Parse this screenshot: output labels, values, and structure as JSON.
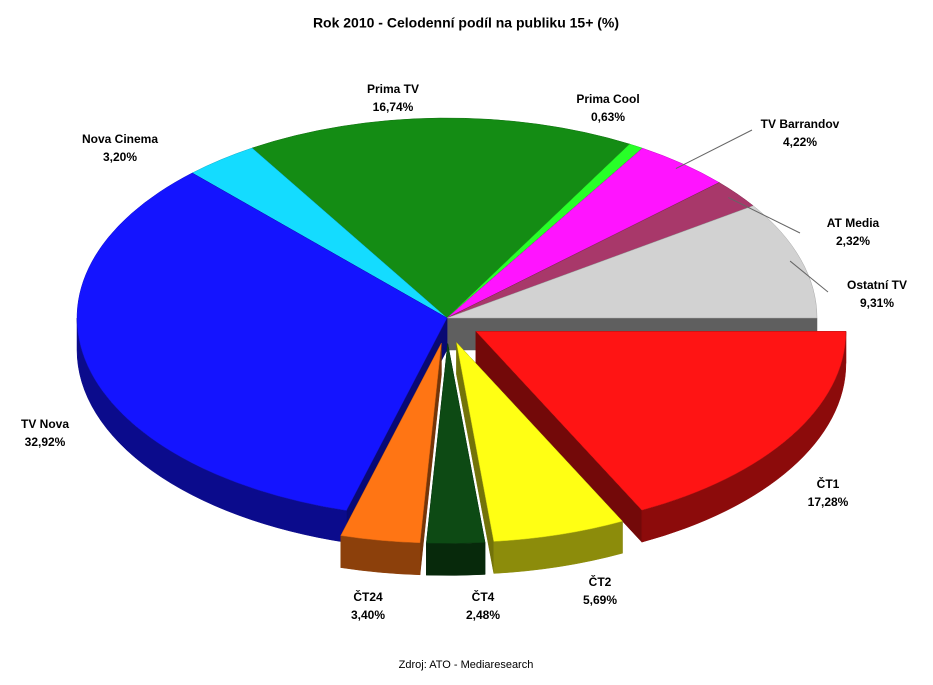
{
  "chart_data": {
    "type": "pie",
    "three_d": true,
    "title": "Rok 2010 - Celodenní podíl na publiku 15+ (%)",
    "source": "Zdroj: ATO - Mediaresearch",
    "categories": [
      "ČT1",
      "ČT2",
      "ČT4",
      "ČT24",
      "TV Nova",
      "Nova Cinema",
      "Prima TV",
      "Prima Cool",
      "TV Barrandov",
      "AT Media",
      "Ostatní TV"
    ],
    "values": [
      17.28,
      5.69,
      2.48,
      3.4,
      32.92,
      3.2,
      16.74,
      0.63,
      4.22,
      2.32,
      9.31
    ],
    "value_labels": [
      "17,28%",
      "5,69%",
      "2,48%",
      "3,40%",
      "32,92%",
      "3,20%",
      "16,74%",
      "0,63%",
      "4,22%",
      "2,32%",
      "9,31%"
    ],
    "colors": [
      "#ff1414",
      "#ffff14",
      "#0d4a14",
      "#ff7514",
      "#1414ff",
      "#14dcff",
      "#148c14",
      "#28ff28",
      "#ff14ff",
      "#a8386a",
      "#d2d2d2"
    ],
    "exploded": [
      true,
      true,
      true,
      true,
      false,
      false,
      false,
      false,
      false,
      false,
      false
    ]
  }
}
